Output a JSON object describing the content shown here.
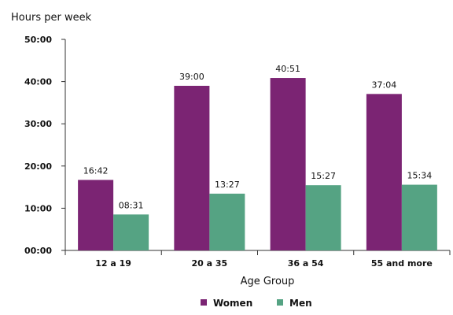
{
  "chart_data": {
    "type": "bar",
    "ylabel": "Hours per week",
    "xlabel": "Age Group",
    "categories": [
      "12 a 19",
      "20 a 35",
      "36 a 54",
      "55 and more"
    ],
    "series": [
      {
        "name": "Women",
        "color": "#7b2473",
        "values": [
          16.7,
          39.0,
          40.85,
          37.0667
        ],
        "labels": [
          "16:42",
          "39:00",
          "40:51",
          "37:04"
        ]
      },
      {
        "name": "Men",
        "color": "#55a383",
        "values": [
          8.5167,
          13.45,
          15.45,
          15.5667
        ],
        "labels": [
          "08:31",
          "13:27",
          "15:27",
          "15:34"
        ]
      }
    ],
    "ylim": [
      0,
      50
    ],
    "yticks": [
      0,
      10,
      20,
      30,
      40,
      50
    ],
    "ytick_labels": [
      "00:00",
      "10:00",
      "20:00",
      "30:00",
      "40:00",
      "50:00"
    ],
    "grid": false,
    "legend_position": "bottom"
  }
}
